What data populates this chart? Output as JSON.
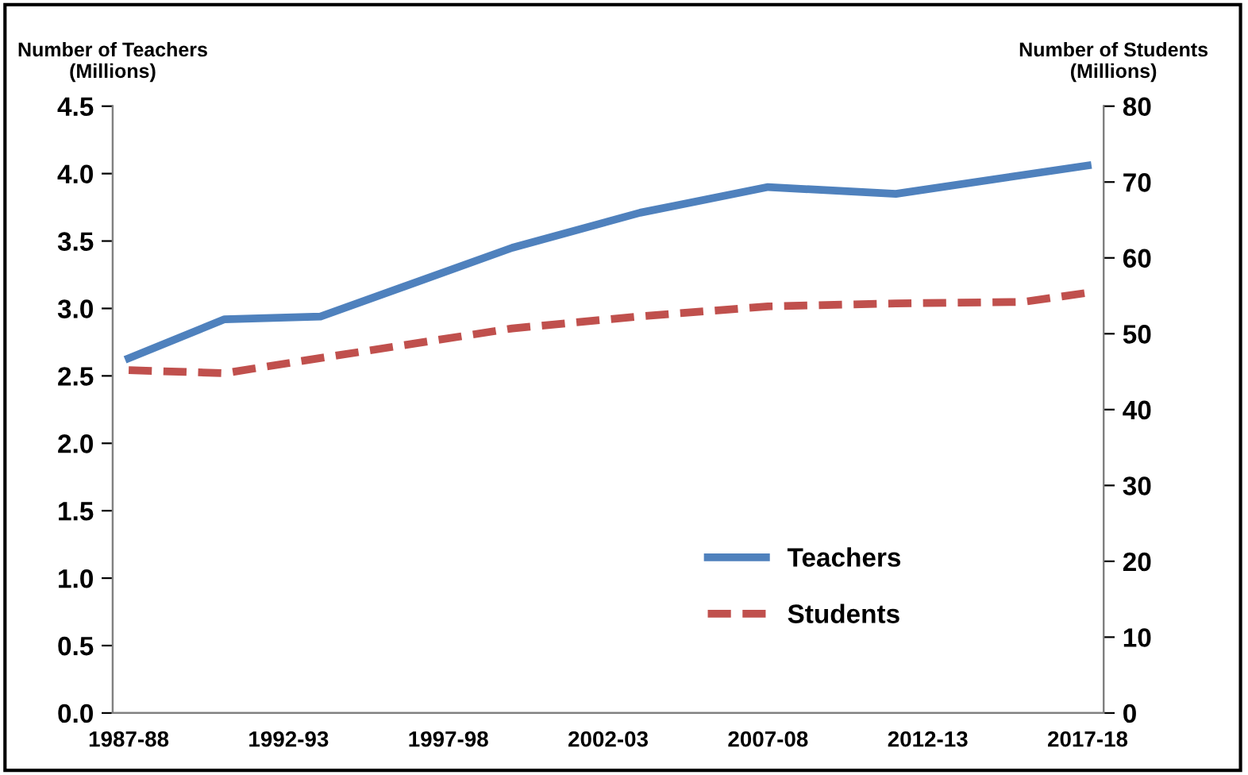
{
  "chart_data": {
    "type": "line",
    "ylabel": "Number of Teachers\n(Millions)",
    "y2label": "Number of Students\n(Millions)",
    "categories": [
      "1987-88",
      null,
      null,
      null,
      null,
      "1992-93",
      null,
      null,
      null,
      null,
      "1997-98",
      null,
      null,
      null,
      null,
      "2002-03",
      null,
      null,
      null,
      null,
      "2007-08",
      null,
      null,
      null,
      null,
      "2012-13",
      null,
      null,
      null,
      null,
      "2017-18"
    ],
    "ylim": [
      0,
      4.5
    ],
    "yticks": [
      {
        "value": 0,
        "label": "0.0"
      },
      {
        "value": 0.5,
        "label": "0.5"
      },
      {
        "value": 1,
        "label": "1.0"
      },
      {
        "value": 1.5,
        "label": "1.5"
      },
      {
        "value": 2,
        "label": "2.0"
      },
      {
        "value": 2.5,
        "label": "2.5"
      },
      {
        "value": 3,
        "label": "3.0"
      },
      {
        "value": 3.5,
        "label": "3.5"
      },
      {
        "value": 4,
        "label": "4.0"
      },
      {
        "value": 4.5,
        "label": "4.5"
      }
    ],
    "y2lim": [
      0,
      80
    ],
    "y2ticks": [
      0,
      10,
      20,
      30,
      40,
      50,
      60,
      70,
      80
    ],
    "legend": "bottom right",
    "grid": false,
    "series": [
      {
        "name": "Teachers",
        "color": "#4f81bd",
        "line_style": "solid",
        "values": [
          2.63,
          null,
          null,
          2.92,
          null,
          null,
          2.94,
          null,
          null,
          null,
          null,
          null,
          3.45,
          null,
          null,
          null,
          3.71,
          null,
          null,
          null,
          3.9,
          null,
          null,
          null,
          3.85,
          null,
          null,
          null,
          null,
          null,
          4.06
        ]
      },
      {
        "name": "Students",
        "color": "#c0504d",
        "line_style": "dashed",
        "axis": "y2",
        "values": [
          45.2,
          null,
          null,
          44.8,
          null,
          null,
          46.8,
          null,
          null,
          null,
          null,
          null,
          50.7,
          null,
          null,
          null,
          52.3,
          null,
          null,
          null,
          53.6,
          null,
          null,
          null,
          54.0,
          null,
          null,
          null,
          54.2,
          null,
          55.4
        ]
      }
    ]
  }
}
